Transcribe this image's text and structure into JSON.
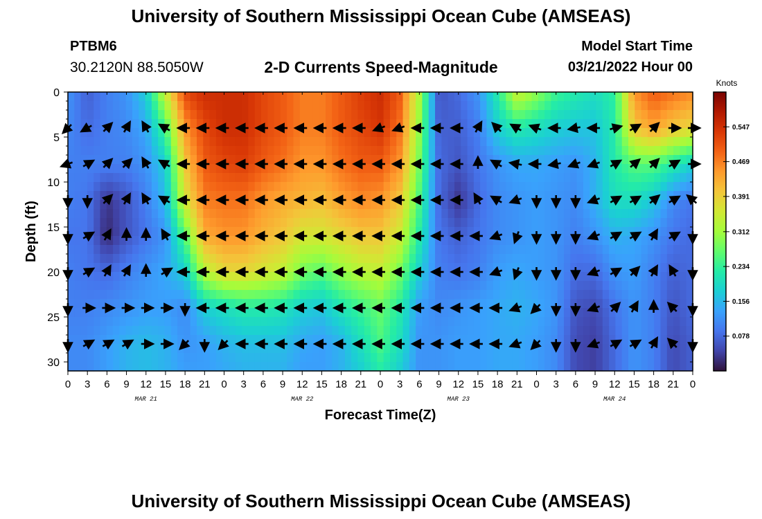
{
  "header": {
    "title": "University of Southern Mississippi Ocean Cube (AMSEAS)",
    "station_id": "PTBM6",
    "station_coords": "30.2120N  88.5050W",
    "subtitle": "2-D Currents Speed-Magnitude",
    "model_start_label": "Model Start Time",
    "model_start_value": "03/21/2022 Hour 00"
  },
  "footer": {
    "title": "University of Southern Mississippi Ocean Cube (AMSEAS)"
  },
  "chart_data": {
    "type": "heatmap",
    "title": "2-D Currents Speed-Magnitude",
    "xlabel": "Forecast Time(Z)",
    "ylabel": "Depth (ft)",
    "xlim": [
      0,
      96
    ],
    "ylim": [
      31,
      0
    ],
    "x_tick_values": [
      0,
      3,
      6,
      9,
      12,
      15,
      18,
      21,
      24,
      27,
      30,
      33,
      36,
      39,
      42,
      45,
      48,
      51,
      54,
      57,
      60,
      63,
      66,
      69,
      72,
      75,
      78,
      81,
      84,
      87,
      90,
      93,
      96
    ],
    "x_tick_labels": [
      "0",
      "3",
      "6",
      "9",
      "12",
      "15",
      "18",
      "21",
      "0",
      "3",
      "6",
      "9",
      "12",
      "15",
      "18",
      "21",
      "0",
      "3",
      "6",
      "9",
      "12",
      "15",
      "18",
      "21",
      "0",
      "3",
      "6",
      "9",
      "12",
      "15",
      "18",
      "21",
      "0"
    ],
    "day_labels": [
      {
        "hour": 12,
        "label": "MAR 21"
      },
      {
        "hour": 36,
        "label": "MAR 22"
      },
      {
        "hour": 60,
        "label": "MAR 23"
      },
      {
        "hour": 84,
        "label": "MAR 24"
      }
    ],
    "y_tick_values": [
      0,
      5,
      10,
      15,
      20,
      25,
      30
    ],
    "y_tick_labels": [
      "0",
      "5",
      "10",
      "15",
      "20",
      "25",
      "30"
    ],
    "colorbar": {
      "label": "Knots",
      "range": [
        0,
        0.625
      ],
      "tick_values": [
        0.078,
        0.156,
        0.234,
        0.312,
        0.391,
        0.469,
        0.547
      ],
      "tick_labels": [
        "0.078",
        "0.156",
        "0.234",
        "0.312",
        "0.391",
        "0.469",
        "0.547"
      ],
      "colormap": [
        "#30123b",
        "#4145ab",
        "#4675ed",
        "#39a2fc",
        "#1bcfd4",
        "#24eca6",
        "#61fc6c",
        "#a4fc3b",
        "#d1e834",
        "#f3c63a",
        "#fe9b2d",
        "#f36315",
        "#d93806",
        "#b11901",
        "#7a0402"
      ]
    },
    "speed_hours": [
      0,
      3,
      6,
      9,
      12,
      15,
      18,
      21,
      24,
      27,
      30,
      33,
      36,
      39,
      42,
      45,
      48,
      51,
      54,
      57,
      60,
      63,
      66,
      69,
      72,
      75,
      78,
      81,
      84,
      87,
      90,
      93,
      96
    ],
    "speed_depths": [
      0,
      4,
      8,
      12,
      16,
      20,
      24,
      28,
      31
    ],
    "speed_knots": [
      [
        0.12,
        0.07,
        0.1,
        0.12,
        0.18,
        0.35,
        0.52,
        0.55,
        0.55,
        0.55,
        0.52,
        0.5,
        0.47,
        0.47,
        0.5,
        0.53,
        0.55,
        0.5,
        0.32,
        0.06,
        0.08,
        0.12,
        0.22,
        0.35,
        0.3,
        0.24,
        0.22,
        0.2,
        0.23,
        0.45,
        0.5,
        0.48,
        0.46
      ],
      [
        0.11,
        0.08,
        0.1,
        0.11,
        0.14,
        0.25,
        0.45,
        0.52,
        0.55,
        0.55,
        0.52,
        0.5,
        0.47,
        0.47,
        0.5,
        0.52,
        0.54,
        0.48,
        0.3,
        0.07,
        0.07,
        0.1,
        0.18,
        0.22,
        0.2,
        0.18,
        0.17,
        0.17,
        0.22,
        0.4,
        0.44,
        0.4,
        0.38
      ],
      [
        0.1,
        0.1,
        0.1,
        0.1,
        0.12,
        0.18,
        0.4,
        0.5,
        0.52,
        0.53,
        0.5,
        0.48,
        0.45,
        0.45,
        0.48,
        0.5,
        0.5,
        0.45,
        0.28,
        0.08,
        0.06,
        0.09,
        0.12,
        0.14,
        0.14,
        0.13,
        0.12,
        0.15,
        0.22,
        0.26,
        0.26,
        0.22,
        0.18
      ],
      [
        0.1,
        0.09,
        0.03,
        0.06,
        0.1,
        0.16,
        0.36,
        0.47,
        0.48,
        0.48,
        0.45,
        0.43,
        0.42,
        0.41,
        0.44,
        0.46,
        0.45,
        0.4,
        0.25,
        0.08,
        0.03,
        0.08,
        0.11,
        0.12,
        0.13,
        0.12,
        0.11,
        0.15,
        0.2,
        0.2,
        0.17,
        0.11,
        0.09
      ],
      [
        0.09,
        0.09,
        0.02,
        0.06,
        0.09,
        0.12,
        0.26,
        0.43,
        0.45,
        0.45,
        0.42,
        0.4,
        0.36,
        0.36,
        0.38,
        0.4,
        0.4,
        0.35,
        0.22,
        0.09,
        0.07,
        0.09,
        0.11,
        0.12,
        0.13,
        0.12,
        0.1,
        0.12,
        0.15,
        0.14,
        0.12,
        0.09,
        0.08
      ],
      [
        0.1,
        0.09,
        0.08,
        0.1,
        0.12,
        0.14,
        0.18,
        0.33,
        0.38,
        0.38,
        0.36,
        0.34,
        0.28,
        0.26,
        0.3,
        0.33,
        0.34,
        0.28,
        0.18,
        0.1,
        0.09,
        0.1,
        0.13,
        0.14,
        0.13,
        0.12,
        0.08,
        0.08,
        0.12,
        0.13,
        0.1,
        0.07,
        0.08
      ],
      [
        0.1,
        0.1,
        0.11,
        0.12,
        0.13,
        0.13,
        0.11,
        0.18,
        0.2,
        0.22,
        0.22,
        0.21,
        0.18,
        0.17,
        0.21,
        0.24,
        0.27,
        0.22,
        0.13,
        0.11,
        0.12,
        0.13,
        0.14,
        0.15,
        0.14,
        0.12,
        0.06,
        0.05,
        0.09,
        0.12,
        0.1,
        0.06,
        0.08
      ],
      [
        0.11,
        0.11,
        0.13,
        0.15,
        0.16,
        0.15,
        0.12,
        0.13,
        0.15,
        0.16,
        0.16,
        0.16,
        0.14,
        0.13,
        0.15,
        0.2,
        0.25,
        0.2,
        0.12,
        0.12,
        0.13,
        0.13,
        0.14,
        0.14,
        0.13,
        0.11,
        0.05,
        0.04,
        0.08,
        0.12,
        0.1,
        0.05,
        0.07
      ],
      [
        0.11,
        0.11,
        0.13,
        0.15,
        0.16,
        0.15,
        0.13,
        0.13,
        0.14,
        0.15,
        0.15,
        0.15,
        0.13,
        0.13,
        0.15,
        0.18,
        0.22,
        0.18,
        0.12,
        0.12,
        0.13,
        0.13,
        0.14,
        0.14,
        0.13,
        0.11,
        0.05,
        0.04,
        0.08,
        0.12,
        0.1,
        0.05,
        0.07
      ]
    ],
    "vector_hours": [
      0,
      3,
      6,
      9,
      12,
      15,
      18,
      21,
      24,
      27,
      30,
      33,
      36,
      39,
      42,
      45,
      48,
      51,
      54,
      57,
      60,
      63,
      66,
      69,
      72,
      75,
      78,
      81,
      84,
      87,
      90,
      93,
      96
    ],
    "vector_depths": [
      4,
      8,
      12,
      16,
      20,
      24,
      28
    ],
    "vector_directions_deg": [
      [
        225,
        210,
        45,
        60,
        120,
        150,
        180,
        180,
        180,
        180,
        180,
        180,
        180,
        180,
        180,
        180,
        200,
        200,
        180,
        180,
        180,
        60,
        135,
        150,
        160,
        180,
        190,
        180,
        15,
        30,
        45,
        0,
        0
      ],
      [
        200,
        30,
        45,
        45,
        120,
        150,
        180,
        180,
        180,
        180,
        180,
        180,
        180,
        180,
        180,
        180,
        180,
        180,
        180,
        180,
        180,
        90,
        150,
        170,
        180,
        190,
        200,
        200,
        30,
        40,
        45,
        30,
        0
      ],
      [
        270,
        270,
        45,
        60,
        120,
        150,
        180,
        180,
        180,
        180,
        180,
        180,
        180,
        180,
        180,
        180,
        180,
        180,
        180,
        180,
        180,
        120,
        150,
        200,
        270,
        270,
        270,
        200,
        30,
        30,
        40,
        30,
        140
      ],
      [
        270,
        30,
        60,
        90,
        90,
        120,
        180,
        180,
        180,
        180,
        180,
        180,
        180,
        180,
        180,
        180,
        180,
        180,
        180,
        180,
        180,
        180,
        200,
        250,
        270,
        270,
        270,
        200,
        30,
        30,
        60,
        30,
        270
      ],
      [
        270,
        30,
        60,
        60,
        90,
        30,
        180,
        180,
        180,
        180,
        180,
        180,
        180,
        180,
        180,
        180,
        180,
        180,
        180,
        180,
        180,
        180,
        200,
        250,
        270,
        270,
        270,
        200,
        30,
        45,
        60,
        120,
        270
      ],
      [
        270,
        0,
        0,
        0,
        0,
        0,
        270,
        180,
        180,
        180,
        180,
        180,
        180,
        180,
        180,
        180,
        180,
        180,
        180,
        180,
        180,
        180,
        180,
        200,
        225,
        270,
        270,
        200,
        45,
        60,
        90,
        135,
        270
      ],
      [
        270,
        30,
        30,
        30,
        0,
        0,
        225,
        270,
        225,
        180,
        180,
        180,
        180,
        180,
        180,
        180,
        180,
        180,
        180,
        180,
        180,
        180,
        180,
        200,
        225,
        270,
        270,
        200,
        30,
        30,
        60,
        135,
        270
      ]
    ]
  }
}
